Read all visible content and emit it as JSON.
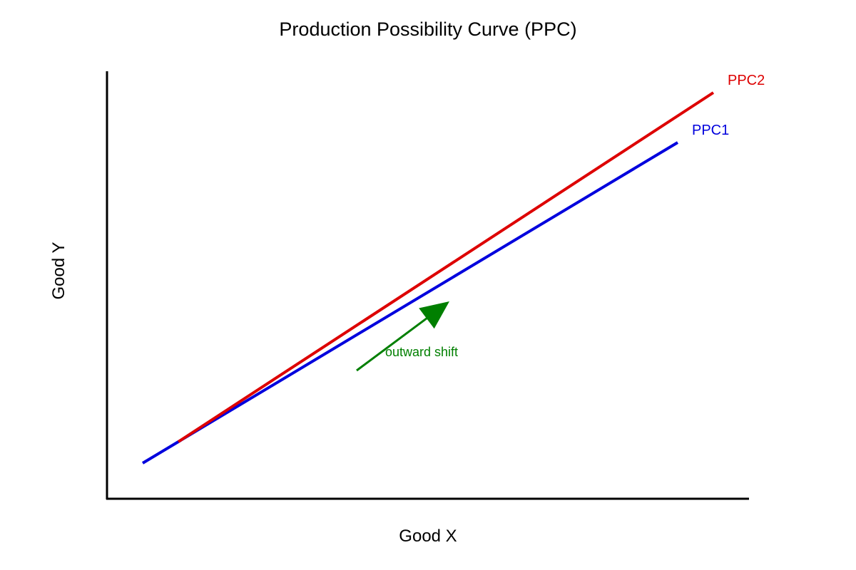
{
  "chart_data": {
    "type": "line",
    "title": "Production Possibility Curve (PPC)",
    "xlabel": "Good X",
    "ylabel": "Good Y",
    "xlim": [
      0,
      900
    ],
    "ylim": [
      0,
      600
    ],
    "grid": false,
    "legend": "none",
    "series": [
      {
        "name": "PPC1",
        "color": "#0000dd",
        "points": [
          [
            50,
            50
          ],
          [
            800,
            500
          ]
        ]
      },
      {
        "name": "PPC2",
        "color": "#dd0000",
        "points": [
          [
            100,
            80
          ],
          [
            850,
            570
          ]
        ]
      }
    ],
    "annotation": {
      "text": "outward shift",
      "color": "#007f00",
      "arrow_from": [
        350,
        180
      ],
      "arrow_to": [
        480,
        277
      ]
    }
  }
}
